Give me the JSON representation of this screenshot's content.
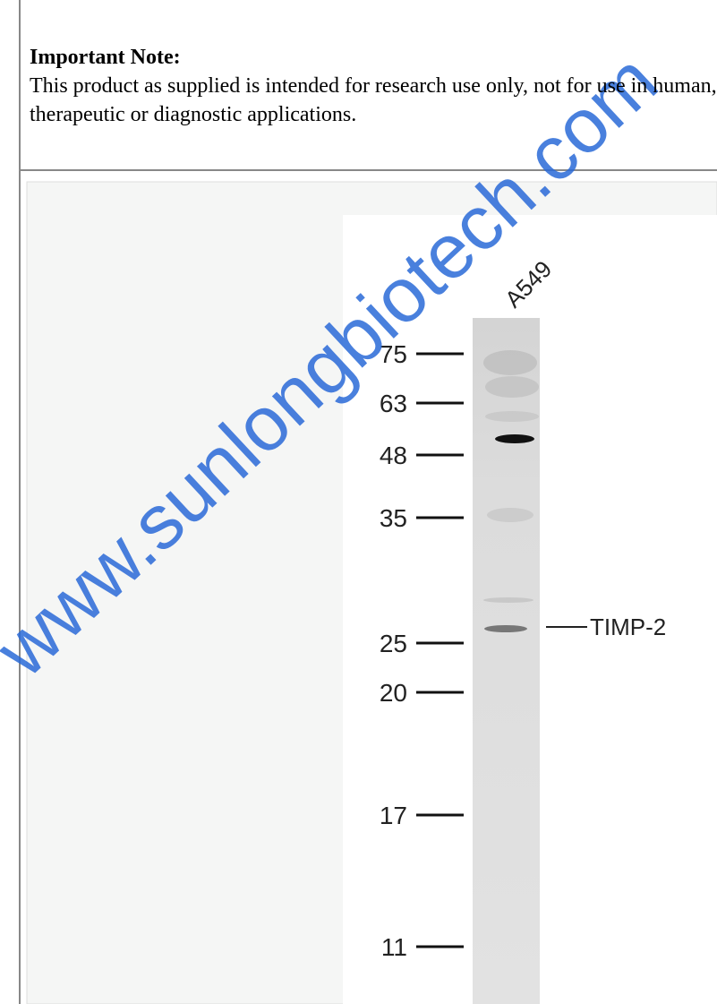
{
  "note": {
    "title": "Important Note:",
    "lines": [
      "This product as supplied is intended for research use only, not for use in human,",
      "therapeutic or diagnostic applications."
    ]
  },
  "blot": {
    "sample": "A549",
    "markers": [
      "75",
      "63",
      "48",
      "35",
      "25",
      "20",
      "17",
      "11"
    ],
    "band_label": "TIMP-2"
  },
  "watermark": "www.sunlongbiotech.com"
}
